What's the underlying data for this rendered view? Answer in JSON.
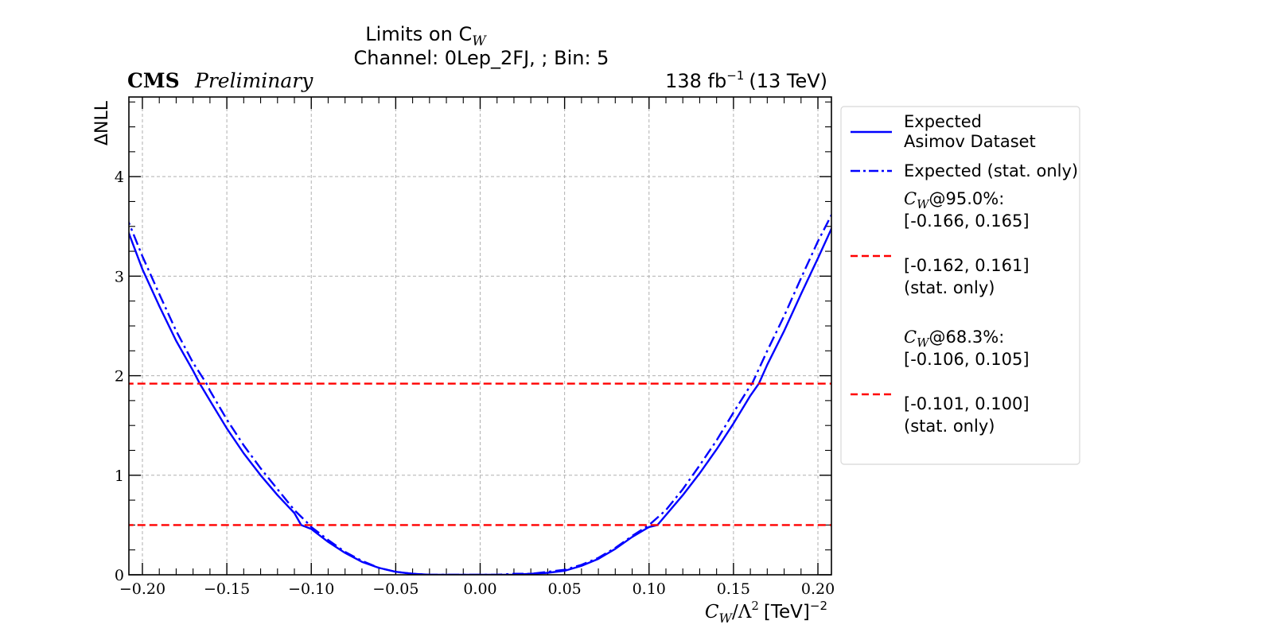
{
  "chart_data": {
    "type": "line",
    "title_line1": "Limits on C",
    "title_sub": "W",
    "title_line2": "Channel: 0Lep_2FJ, ; Bin: 5",
    "cms_label": "CMS",
    "preliminary_label": "Preliminary",
    "lumi_label": "138 fb",
    "lumi_exp": "−1",
    "energy_label": "(13 TeV)",
    "xlabel": "C",
    "xlabel_sub": "W",
    "xlabel_mid": "/Λ",
    "xlabel_sq": "2",
    "xlabel_unit": "[TeV]",
    "xlabel_exp": "−2",
    "ylabel": "ΔNLL",
    "xlim": [
      -0.208,
      0.208
    ],
    "ylim": [
      0,
      4.8
    ],
    "xticks": [
      -0.2,
      -0.15,
      -0.1,
      -0.05,
      0.0,
      0.05,
      0.1,
      0.15,
      0.2
    ],
    "xtick_labels": [
      "−0.20",
      "−0.15",
      "−0.10",
      "−0.05",
      "0.00",
      "0.05",
      "0.10",
      "0.15",
      "0.20"
    ],
    "yticks": [
      0,
      1,
      2,
      3,
      4
    ],
    "ytick_labels": [
      "0",
      "1",
      "2",
      "3",
      "4"
    ],
    "grid": true,
    "legend_position": "outside-right",
    "series": [
      {
        "name": "Expected Asimov Dataset",
        "style": "solid",
        "color": "#0000ff",
        "x": [
          -0.21,
          -0.2,
          -0.19,
          -0.18,
          -0.17,
          -0.166,
          -0.16,
          -0.15,
          -0.14,
          -0.13,
          -0.12,
          -0.11,
          -0.106,
          -0.1,
          -0.09,
          -0.08,
          -0.07,
          -0.06,
          -0.05,
          -0.04,
          -0.03,
          -0.02,
          -0.01,
          0.0,
          0.01,
          0.02,
          0.03,
          0.04,
          0.05,
          0.06,
          0.07,
          0.08,
          0.09,
          0.1,
          0.105,
          0.11,
          0.12,
          0.13,
          0.14,
          0.15,
          0.16,
          0.165,
          0.17,
          0.18,
          0.19,
          0.2,
          0.21
        ],
        "y": [
          3.52,
          3.07,
          2.7,
          2.35,
          2.05,
          1.92,
          1.75,
          1.47,
          1.22,
          1.0,
          0.8,
          0.62,
          0.5,
          0.46,
          0.33,
          0.22,
          0.13,
          0.07,
          0.03,
          0.01,
          0.0,
          0.0,
          0.0,
          0.0,
          0.0,
          0.0,
          0.01,
          0.02,
          0.04,
          0.09,
          0.16,
          0.26,
          0.38,
          0.48,
          0.5,
          0.6,
          0.8,
          1.02,
          1.26,
          1.52,
          1.8,
          1.92,
          2.11,
          2.45,
          2.82,
          3.18,
          3.55
        ]
      },
      {
        "name": "Expected (stat. only)",
        "style": "dashdot",
        "color": "#0000ff",
        "x": [
          -0.21,
          -0.2,
          -0.19,
          -0.18,
          -0.17,
          -0.162,
          -0.16,
          -0.15,
          -0.14,
          -0.13,
          -0.12,
          -0.11,
          -0.101,
          -0.1,
          -0.09,
          -0.08,
          -0.07,
          -0.06,
          -0.05,
          -0.04,
          -0.03,
          -0.02,
          -0.01,
          0.0,
          0.01,
          0.02,
          0.03,
          0.04,
          0.05,
          0.06,
          0.07,
          0.08,
          0.09,
          0.1,
          0.11,
          0.12,
          0.13,
          0.14,
          0.15,
          0.16,
          0.161,
          0.17,
          0.18,
          0.19,
          0.2,
          0.21
        ],
        "y": [
          3.62,
          3.2,
          2.82,
          2.45,
          2.13,
          1.92,
          1.85,
          1.56,
          1.3,
          1.07,
          0.86,
          0.65,
          0.5,
          0.48,
          0.35,
          0.23,
          0.14,
          0.07,
          0.03,
          0.01,
          0.0,
          0.0,
          0.0,
          0.0,
          0.0,
          0.01,
          0.01,
          0.03,
          0.05,
          0.1,
          0.17,
          0.27,
          0.39,
          0.5,
          0.65,
          0.86,
          1.1,
          1.35,
          1.63,
          1.9,
          1.92,
          2.25,
          2.6,
          2.98,
          3.35,
          3.68
        ]
      },
      {
        "name": "95.0% threshold",
        "style": "dashed",
        "color": "#ff0000",
        "x": [
          -0.21,
          0.21
        ],
        "y": [
          1.92,
          1.92
        ]
      },
      {
        "name": "68.3% threshold",
        "style": "dashed",
        "color": "#ff0000",
        "x": [
          -0.21,
          0.21
        ],
        "y": [
          0.5,
          0.5
        ]
      }
    ],
    "legend": {
      "entry1_line1": "Expected",
      "entry1_line2": "Asimov Dataset",
      "entry2": "Expected (stat. only)",
      "cl95_var": "C",
      "cl95_sub": "W",
      "cl95_label": "@95.0%:",
      "cl95_exp": "[-0.166, 0.165]",
      "cl95_stat": "[-0.162, 0.161]",
      "cl95_stat_note": "(stat. only)",
      "cl68_var": "C",
      "cl68_sub": "W",
      "cl68_label": "@68.3%:",
      "cl68_exp": "[-0.106, 0.105]",
      "cl68_stat": "[-0.101, 0.100]",
      "cl68_stat_note": "(stat. only)"
    }
  }
}
